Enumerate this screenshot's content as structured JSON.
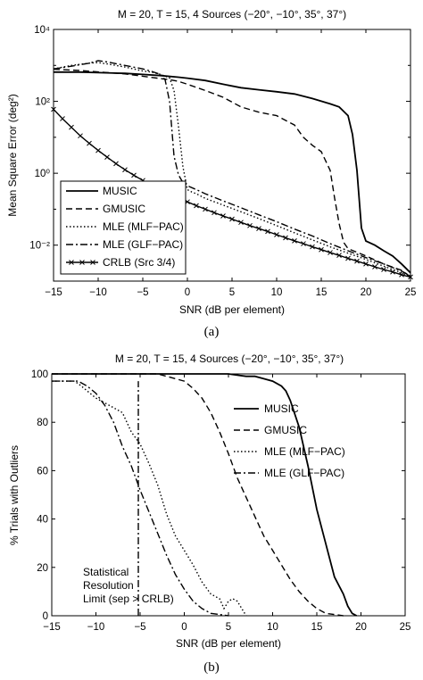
{
  "chart_data": [
    {
      "type": "line",
      "title": "M = 20, T = 15, 4 Sources (−20°, −10°, 35°, 37°)",
      "xlabel": "SNR (dB per element)",
      "ylabel": "Mean Square Error (deg²)",
      "xlim": [
        -15,
        25
      ],
      "ylim": [
        0.001,
        10000
      ],
      "yscale": "log",
      "xticks": [
        "−15",
        "−10",
        "−5",
        "0",
        "5",
        "10",
        "15",
        "20",
        "25"
      ],
      "yticks": [
        "10⁻²",
        "10⁰",
        "10²",
        "10⁴"
      ],
      "legend_position": "lower-left",
      "caption": "(a)",
      "series": [
        {
          "name": "MUSIC",
          "style": "solid",
          "x": [
            -15,
            -12,
            -10,
            -7,
            -5,
            -3,
            -1,
            0,
            2,
            4,
            6,
            8,
            10,
            12,
            14,
            16,
            17,
            18,
            18.5,
            19,
            19.5,
            20,
            21,
            22,
            23,
            24,
            25
          ],
          "y": [
            650,
            650,
            630,
            600,
            560,
            520,
            470,
            440,
            380,
            300,
            240,
            210,
            185,
            160,
            120,
            85,
            70,
            40,
            12,
            1.2,
            0.03,
            0.013,
            0.01,
            0.007,
            0.005,
            0.003,
            0.0017
          ]
        },
        {
          "name": "GMUSIC",
          "style": "dashed",
          "x": [
            -15,
            -12,
            -10,
            -7,
            -5,
            -3,
            -2,
            -1,
            0,
            2,
            4,
            6,
            8,
            10,
            12,
            13,
            14,
            15,
            16,
            16.5,
            17,
            17.5,
            18,
            20,
            22,
            24,
            25
          ],
          "y": [
            780,
            720,
            660,
            580,
            500,
            430,
            400,
            360,
            300,
            200,
            130,
            70,
            50,
            40,
            22,
            10,
            6,
            4,
            1.2,
            0.2,
            0.04,
            0.012,
            0.008,
            0.005,
            0.003,
            0.002,
            0.0013
          ]
        },
        {
          "name": "MLE (MLF−PAC)",
          "style": "dotted",
          "x": [
            -15,
            -13,
            -11,
            -10,
            -9,
            -7,
            -5,
            -4,
            -3,
            -2,
            -1.5,
            -1,
            -0.5,
            0,
            0.5,
            1,
            2,
            4,
            6,
            8,
            10,
            12,
            14,
            16,
            18,
            20,
            22,
            24,
            25
          ],
          "y": [
            800,
            1000,
            1150,
            1200,
            1100,
            900,
            700,
            650,
            560,
            450,
            200,
            20,
            1.5,
            0.35,
            0.3,
            0.27,
            0.2,
            0.13,
            0.085,
            0.055,
            0.035,
            0.022,
            0.014,
            0.009,
            0.006,
            0.004,
            0.0026,
            0.0017,
            0.0013
          ]
        },
        {
          "name": "MLE (GLF−PAC)",
          "style": "dashdot",
          "x": [
            -15,
            -13,
            -11,
            -10,
            -9,
            -7,
            -5,
            -4,
            -3,
            -2.5,
            -2,
            -1.5,
            -1,
            -0.5,
            0,
            1,
            2,
            4,
            6,
            8,
            10,
            12,
            14,
            16,
            18,
            20,
            22,
            24,
            25
          ],
          "y": [
            800,
            950,
            1150,
            1350,
            1250,
            1000,
            800,
            680,
            560,
            400,
            100,
            3,
            0.9,
            0.55,
            0.45,
            0.35,
            0.27,
            0.17,
            0.11,
            0.07,
            0.045,
            0.028,
            0.018,
            0.011,
            0.007,
            0.0045,
            0.003,
            0.0019,
            0.0014
          ]
        },
        {
          "name": "CRLB (Src 3/4)",
          "style": "solid-x",
          "x": [
            -15,
            -14,
            -13,
            -12,
            -11,
            -10,
            -9,
            -8,
            -7,
            -6,
            -5,
            -4,
            -3,
            -2,
            -1,
            0,
            1,
            2,
            3,
            4,
            5,
            6,
            7,
            8,
            9,
            10,
            11,
            12,
            13,
            14,
            15,
            16,
            17,
            18,
            19,
            20,
            21,
            22,
            23,
            24,
            25
          ],
          "y": [
            60,
            33,
            19,
            11,
            6.8,
            4.3,
            2.8,
            1.85,
            1.25,
            0.88,
            0.63,
            0.46,
            0.34,
            0.26,
            0.2,
            0.16,
            0.125,
            0.1,
            0.08,
            0.065,
            0.053,
            0.043,
            0.035,
            0.029,
            0.024,
            0.0195,
            0.016,
            0.0132,
            0.011,
            0.009,
            0.0075,
            0.0062,
            0.0052,
            0.0043,
            0.0036,
            0.003,
            0.0025,
            0.0021,
            0.0018,
            0.0015,
            0.0013
          ]
        }
      ]
    },
    {
      "type": "line",
      "title": "M = 20, T = 15, 4 Sources (−20°, −10°, 35°, 37°)",
      "xlabel": "SNR (dB per element)",
      "ylabel": "% Trials with Outliers",
      "xlim": [
        -15,
        25
      ],
      "ylim": [
        0,
        100
      ],
      "xticks": [
        "−15",
        "−10",
        "−5",
        "0",
        "5",
        "10",
        "15",
        "20",
        "25"
      ],
      "yticks": [
        "0",
        "20",
        "40",
        "60",
        "80",
        "100"
      ],
      "legend_position": "right",
      "caption": "(b)",
      "annotation": [
        "Statistical",
        "Resolution",
        "Limit (sep > CRLB)"
      ],
      "series": [
        {
          "name": "MUSIC",
          "style": "solid",
          "x": [
            -15,
            4,
            5,
            6,
            7,
            8,
            9,
            10,
            11,
            11.5,
            12,
            13,
            14,
            15,
            16,
            17,
            18,
            18.5,
            19,
            19.5
          ],
          "y": [
            100,
            100,
            100,
            99.5,
            99,
            99,
            98,
            97,
            95,
            93,
            89,
            78,
            62,
            44,
            30,
            16,
            9,
            4,
            1,
            0
          ]
        },
        {
          "name": "GMUSIC",
          "style": "dashed",
          "x": [
            -15,
            -3,
            -2,
            -1,
            0,
            1,
            2,
            3,
            4,
            5,
            6,
            7,
            8,
            9,
            10,
            11,
            12,
            13,
            14,
            15,
            16,
            17,
            18
          ],
          "y": [
            100,
            100,
            99,
            98,
            97,
            94,
            90,
            84,
            76,
            67,
            57,
            49,
            41,
            33,
            27,
            21,
            15,
            10,
            6,
            3,
            1,
            0.5,
            0
          ]
        },
        {
          "name": "MLE (MLF−PAC)",
          "style": "dotted",
          "x": [
            -15,
            -12.5,
            -12,
            -11,
            -10,
            -9,
            -8,
            -7,
            -6,
            -5,
            -4,
            -3,
            -2,
            -1,
            0,
            1,
            2,
            3,
            4,
            4.5,
            5,
            5.5,
            6,
            6.5,
            7
          ],
          "y": [
            97,
            97,
            96,
            93,
            90,
            88,
            86,
            84,
            76,
            71,
            63,
            54,
            42,
            33,
            27,
            21,
            14,
            9,
            7,
            3,
            6,
            7,
            6,
            3,
            0
          ]
        },
        {
          "name": "MLE (GLF−PAC)",
          "style": "dashdot",
          "x": [
            -15,
            -12,
            -11,
            -10,
            -9,
            -8,
            -7,
            -6,
            -5,
            -4,
            -3,
            -2,
            -1,
            0,
            1,
            2,
            3,
            4,
            5
          ],
          "y": [
            97,
            97,
            95,
            92,
            87,
            80,
            70,
            62,
            52,
            43,
            34,
            25,
            17,
            11,
            6,
            3,
            1,
            0.5,
            0
          ]
        },
        {
          "name": "",
          "style": "dashdot",
          "x": [
            -5.2,
            -5.2
          ],
          "y": [
            0,
            97
          ]
        }
      ]
    }
  ]
}
